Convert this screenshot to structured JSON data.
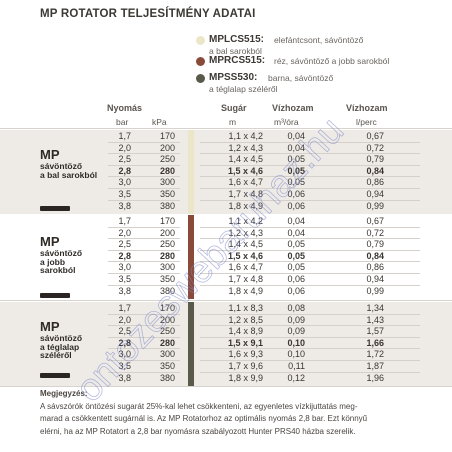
{
  "title": "MP ROTATOR TELJESÍTMÉNY ADATAI",
  "legend": [
    {
      "code": "MPLCS515:",
      "desc": "elefántcsont, sávöntöző",
      "desc2": "a bal sarokból",
      "color": "#ece6c8"
    },
    {
      "code": "MPRCS515:",
      "desc": "réz, sávöntöző a jobb sarokból",
      "desc2": "",
      "color": "#8a4a3a"
    },
    {
      "code": "MPSS530:",
      "desc": "barna, sávöntöző",
      "desc2": "a téglalap széléről",
      "color": "#5a5a4a"
    }
  ],
  "headers": {
    "pressure": "Nyomás",
    "bar": "bar",
    "kpa": "kPa",
    "radius": "Sugár",
    "radius_unit": "m",
    "flow1": "Vízhozam",
    "flow1_unit": "m³/óra",
    "flow2": "Vízhozam",
    "flow2_unit": "l/perc"
  },
  "groups": [
    {
      "label_big": "MP",
      "label_small": [
        "sávöntöző",
        "a bal sarokból"
      ],
      "stripe_color": "#ece6c8",
      "rows": [
        {
          "bar": "1,7",
          "kpa": "170",
          "radius": "1,1 x 4,2",
          "m3": "0,04",
          "lpm": "0,67",
          "bold": false
        },
        {
          "bar": "2,0",
          "kpa": "200",
          "radius": "1,2 x 4,3",
          "m3": "0,04",
          "lpm": "0,72",
          "bold": false
        },
        {
          "bar": "2,5",
          "kpa": "250",
          "radius": "1,4 x 4,5",
          "m3": "0,05",
          "lpm": "0,79",
          "bold": false
        },
        {
          "bar": "2,8",
          "kpa": "280",
          "radius": "1,5 x 4,6",
          "m3": "0,05",
          "lpm": "0,84",
          "bold": true
        },
        {
          "bar": "3,0",
          "kpa": "300",
          "radius": "1,6 x 4,7",
          "m3": "0,05",
          "lpm": "0,86",
          "bold": false
        },
        {
          "bar": "3,5",
          "kpa": "350",
          "radius": "1,7 x 4,8",
          "m3": "0,06",
          "lpm": "0,94",
          "bold": false
        },
        {
          "bar": "3,8",
          "kpa": "380",
          "radius": "1,8 x 4,9",
          "m3": "0,06",
          "lpm": "0,99",
          "bold": false
        }
      ]
    },
    {
      "label_big": "MP",
      "label_small": [
        "sávöntöző",
        "a jobb",
        "sarokból"
      ],
      "stripe_color": "#8a4a3a",
      "rows": [
        {
          "bar": "1,7",
          "kpa": "170",
          "radius": "1,1 x 4,2",
          "m3": "0,04",
          "lpm": "0,67",
          "bold": false
        },
        {
          "bar": "2,0",
          "kpa": "200",
          "radius": "1,2 x 4,3",
          "m3": "0,04",
          "lpm": "0,72",
          "bold": false
        },
        {
          "bar": "2,5",
          "kpa": "250",
          "radius": "1,4 x 4,5",
          "m3": "0,05",
          "lpm": "0,79",
          "bold": false
        },
        {
          "bar": "2,8",
          "kpa": "280",
          "radius": "1,5 x 4,6",
          "m3": "0,05",
          "lpm": "0,84",
          "bold": true
        },
        {
          "bar": "3,0",
          "kpa": "300",
          "radius": "1,6 x 4,7",
          "m3": "0,05",
          "lpm": "0,86",
          "bold": false
        },
        {
          "bar": "3,5",
          "kpa": "350",
          "radius": "1,7 x 4,8",
          "m3": "0,06",
          "lpm": "0,94",
          "bold": false
        },
        {
          "bar": "3,8",
          "kpa": "380",
          "radius": "1,8 x 4,9",
          "m3": "0,06",
          "lpm": "0,99",
          "bold": false
        }
      ]
    },
    {
      "label_big": "MP",
      "label_small": [
        "sávöntöző",
        "a téglalap",
        "széléről"
      ],
      "stripe_color": "#5a5a4a",
      "rows": [
        {
          "bar": "1,7",
          "kpa": "170",
          "radius": "1,1 x 8,3",
          "m3": "0,08",
          "lpm": "1,34",
          "bold": false
        },
        {
          "bar": "2,0",
          "kpa": "200",
          "radius": "1,2 x 8,5",
          "m3": "0,09",
          "lpm": "1,43",
          "bold": false
        },
        {
          "bar": "2,5",
          "kpa": "250",
          "radius": "1,4 x 8,9",
          "m3": "0,09",
          "lpm": "1,57",
          "bold": false
        },
        {
          "bar": "2,8",
          "kpa": "280",
          "radius": "1,5 x 9,1",
          "m3": "0,10",
          "lpm": "1,66",
          "bold": true
        },
        {
          "bar": "3,0",
          "kpa": "300",
          "radius": "1,6 x 9,3",
          "m3": "0,10",
          "lpm": "1,72",
          "bold": false
        },
        {
          "bar": "3,5",
          "kpa": "350",
          "radius": "1,7 x 9,6",
          "m3": "0,11",
          "lpm": "1,87",
          "bold": false
        },
        {
          "bar": "3,8",
          "kpa": "380",
          "radius": "1,8 x 9,9",
          "m3": "0,12",
          "lpm": "1,96",
          "bold": false
        }
      ]
    }
  ],
  "notes": {
    "title": "Megjegyzés:",
    "lines": [
      "A sávszórók öntözési sugarát 25%-kal lehet csökkenteni, az egyenletes vízkijuttatás meg-",
      "marad a csökkentett sugárnál is.  Az MP Rotatorhoz az optimális nyomás 2,8 bar. Ezt könnyű",
      "elérni, ha az MP Rotatort a 2,8 bar nyomásra szabályozott Hunter PRS40 házba szerelik."
    ]
  },
  "watermark": "ontozeswebaruhaz.hu"
}
